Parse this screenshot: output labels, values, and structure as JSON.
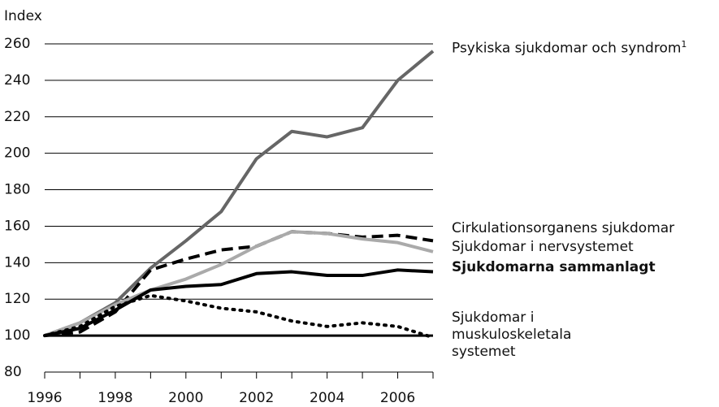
{
  "chart_data": {
    "type": "line",
    "y_axis_label": "Index",
    "x": [
      1996,
      1997,
      1998,
      1999,
      2000,
      2001,
      2002,
      2003,
      2004,
      2005,
      2006,
      2007
    ],
    "xlim": [
      1996,
      2007
    ],
    "xticks": [
      1996,
      1998,
      2000,
      2002,
      2004,
      2006
    ],
    "ylim": [
      80,
      260
    ],
    "yticks": [
      80,
      100,
      120,
      140,
      160,
      180,
      200,
      220,
      240,
      260
    ],
    "grid": true,
    "baseline": 100,
    "series": [
      {
        "name": "Psykiska sjukdomar och syndrom",
        "note": "1",
        "color": "#666666",
        "style": "solid",
        "values": [
          100,
          107,
          118,
          137,
          152,
          168,
          197,
          212,
          209,
          214,
          240,
          256
        ]
      },
      {
        "name": "Cirkulationsorganens sjukdomar",
        "color": "#000000",
        "style": "dashed",
        "values": [
          100,
          102,
          113,
          136,
          142,
          147,
          149,
          157,
          156,
          154,
          155,
          152
        ]
      },
      {
        "name": "Sjukdomar i nervsystemet",
        "color": "#aaaaaa",
        "style": "solid",
        "values": [
          100,
          107,
          117,
          125,
          131,
          139,
          149,
          157,
          156,
          153,
          151,
          146
        ]
      },
      {
        "name": "Sjukdomarna sammanlagt",
        "color": "#000000",
        "style": "solid",
        "bold": true,
        "values": [
          100,
          104,
          114,
          125,
          127,
          128,
          134,
          135,
          133,
          133,
          136,
          135
        ]
      },
      {
        "name": "Sjukdomar i muskuloskeletala systemet",
        "color": "#000000",
        "style": "dotted",
        "values": [
          100,
          105,
          116,
          122,
          119,
          115,
          113,
          108,
          105,
          107,
          105,
          99
        ]
      }
    ]
  }
}
